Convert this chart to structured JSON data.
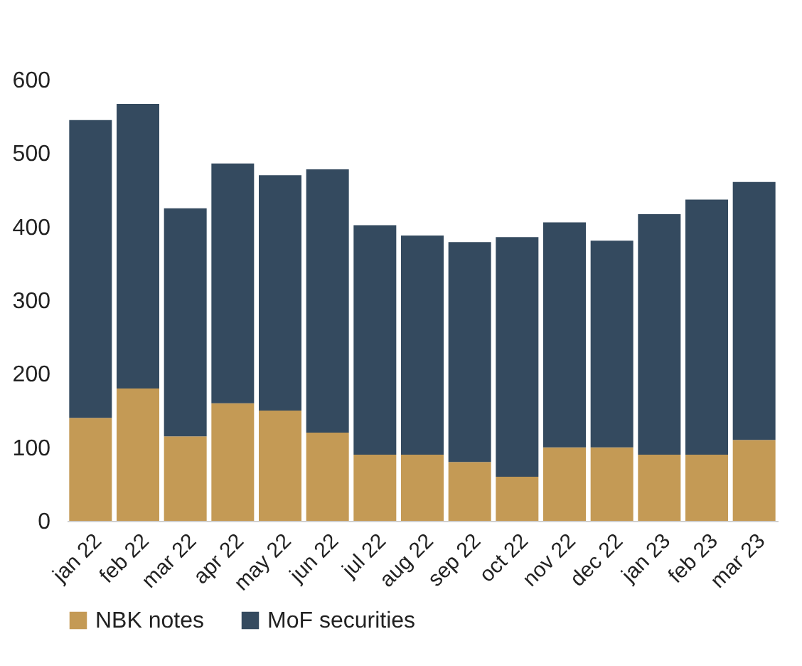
{
  "chart_data": {
    "type": "bar",
    "stacked": true,
    "categories": [
      "jan 22",
      "feb 22",
      "mar 22",
      "apr 22",
      "may 22",
      "jun 22",
      "jul 22",
      "aug 22",
      "sep 22",
      "oct 22",
      "nov 22",
      "dec 22",
      "jan 23",
      "feb 23",
      "mar 23"
    ],
    "series": [
      {
        "name": "NBK notes",
        "color": "#c49a55",
        "values": [
          140,
          180,
          115,
          160,
          150,
          120,
          90,
          90,
          80,
          60,
          100,
          100,
          90,
          90,
          110
        ]
      },
      {
        "name": "MoF securities",
        "color": "#344a5f",
        "values": [
          405,
          387,
          310,
          326,
          320,
          358,
          312,
          298,
          299,
          326,
          306,
          281,
          327,
          347,
          351
        ]
      }
    ],
    "ylim": [
      0,
      600
    ],
    "yticks": [
      0,
      100,
      200,
      300,
      400,
      500,
      600
    ],
    "grid": false,
    "legend": "bottom"
  }
}
